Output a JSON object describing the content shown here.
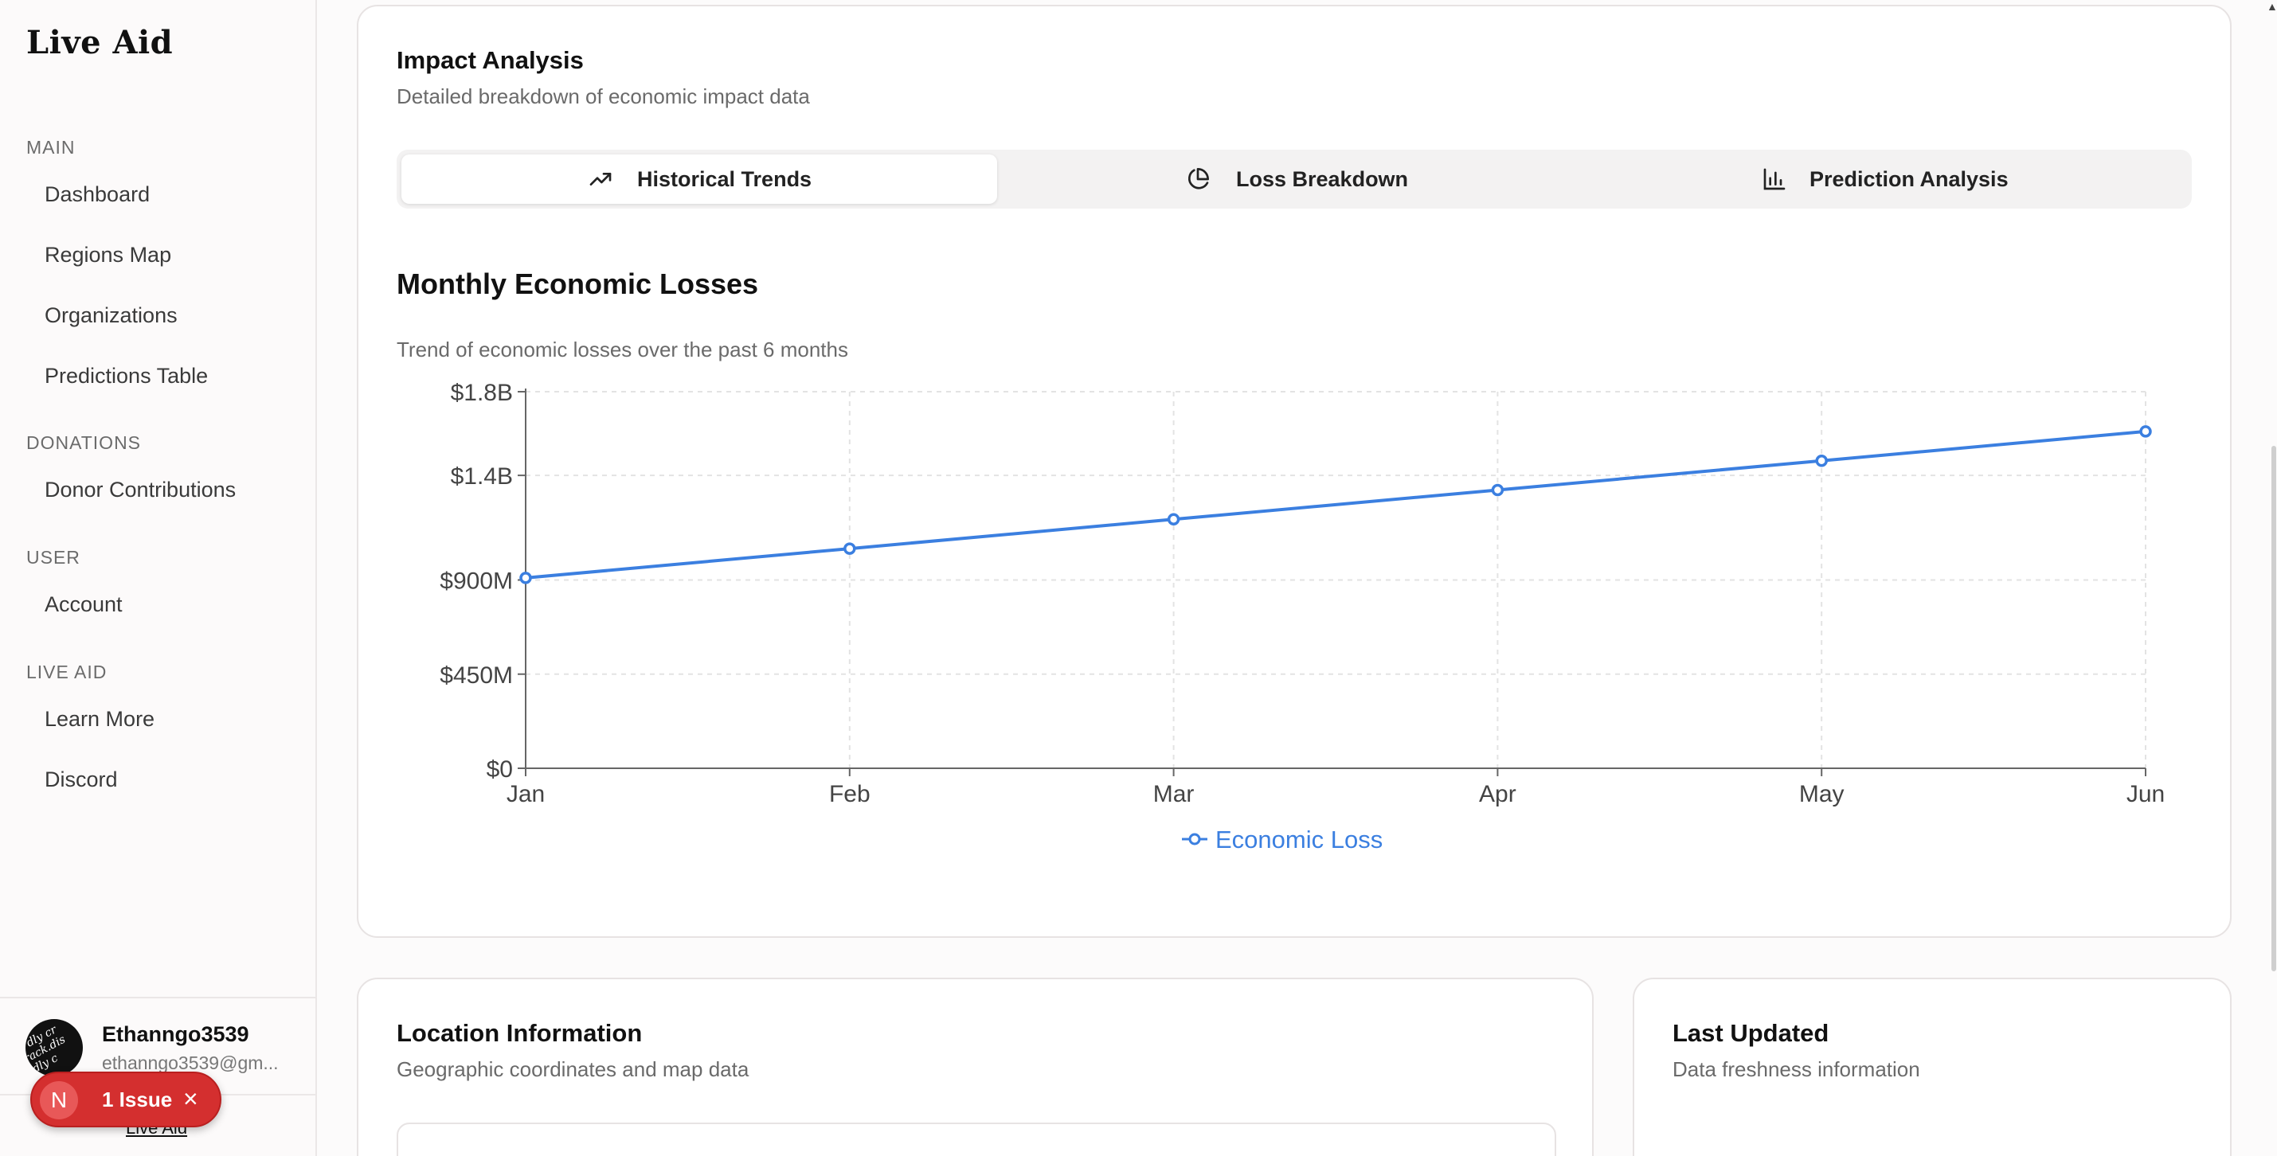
{
  "app": {
    "title": "Live Aid"
  },
  "sidebar": {
    "sections": [
      {
        "label": "MAIN",
        "items": [
          {
            "label": "Dashboard"
          },
          {
            "label": "Regions Map"
          },
          {
            "label": "Organizations"
          },
          {
            "label": "Predictions Table"
          }
        ]
      },
      {
        "label": "DONATIONS",
        "items": [
          {
            "label": "Donor Contributions"
          }
        ]
      },
      {
        "label": "USER",
        "items": [
          {
            "label": "Account"
          }
        ]
      },
      {
        "label": "LIVE AID",
        "items": [
          {
            "label": "Learn More"
          },
          {
            "label": "Discord"
          }
        ]
      }
    ],
    "user": {
      "name": "Ethanngo3539",
      "email": "ethanngo3539@gm...",
      "avatar_icon": "avatar-image"
    },
    "footer_link": "Live Aid"
  },
  "issue_badge": {
    "initial": "N",
    "label": "1 Issue",
    "close": "×",
    "color": "#d42f2f"
  },
  "impact": {
    "title": "Impact Analysis",
    "subtitle": "Detailed breakdown of economic impact data",
    "tabs": [
      {
        "label": "Historical Trends",
        "icon": "trending-up-icon",
        "active": true
      },
      {
        "label": "Loss Breakdown",
        "icon": "pie-chart-icon",
        "active": false
      },
      {
        "label": "Prediction Analysis",
        "icon": "bar-chart-icon",
        "active": false
      }
    ],
    "chart_title": "Monthly Economic Losses",
    "chart_subtitle": "Trend of economic losses over the past 6 months"
  },
  "chart_data": {
    "type": "line",
    "title": "Monthly Economic Losses",
    "subtitle": "Trend of economic losses over the past 6 months",
    "categories": [
      "Jan",
      "Feb",
      "Mar",
      "Apr",
      "May",
      "Jun"
    ],
    "series": [
      {
        "name": "Economic Loss",
        "values": [
          910000000,
          1050000000,
          1190000000,
          1330000000,
          1470000000,
          1610000000
        ],
        "color": "#3b7fe0"
      }
    ],
    "ylim": [
      0,
      1800000000
    ],
    "yticks": [
      {
        "value": 0,
        "label": "$0"
      },
      {
        "value": 450000000,
        "label": "$450M"
      },
      {
        "value": 900000000,
        "label": "$900M"
      },
      {
        "value": 1400000000,
        "label": "$1.4B"
      },
      {
        "value": 1800000000,
        "label": "$1.8B"
      }
    ],
    "grid": true,
    "legend": "bottom-center",
    "xlabel": "",
    "ylabel": ""
  },
  "location": {
    "title": "Location Information",
    "subtitle": "Geographic coordinates and map data"
  },
  "last_updated": {
    "title": "Last Updated",
    "subtitle": "Data freshness information"
  }
}
